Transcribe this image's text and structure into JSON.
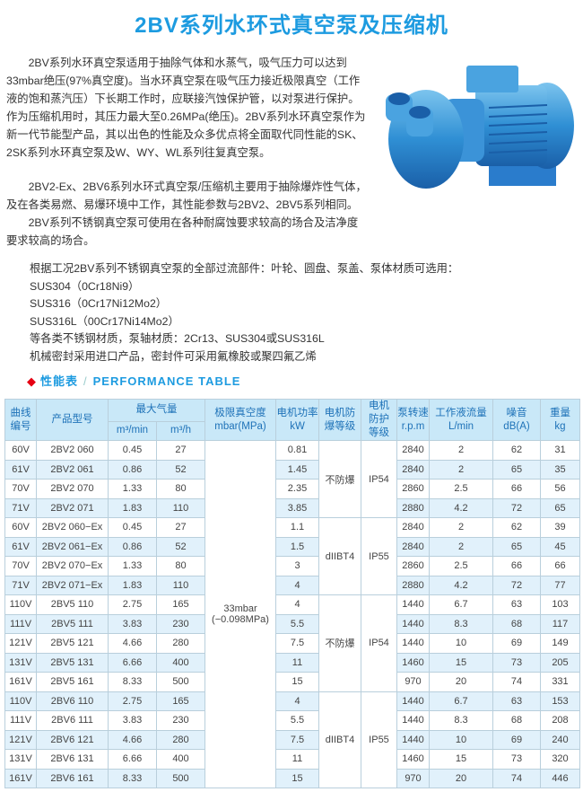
{
  "title": "2BV系列水环式真空泵及压缩机",
  "intro": {
    "paragraphs": [
      "2BV系列水环真空泵适用于抽除气体和水蒸气，吸气压力可以达到33mbar绝压(97%真空度)。当水环真空泵在吸气压力接近极限真空（工作液的饱和蒸汽压）下长期工作时，应联接汽蚀保护管，以对泵进行保护。作为压缩机用时，其压力最大至0.26MPa(绝压)。2BV系列水环真空泵作为新一代节能型产品，其以出色的性能及众多优点将全面取代同性能的SK、2SK系列水环真空泵及W、WY、WL系列往复真空泵。",
      "2BV2-Ex、2BV6系列水环式真空泵/压缩机主要用于抽除爆炸性气体，及在各类易燃、易爆环境中工作，其性能参数与2BV2、2BV5系列相同。",
      "2BV系列不锈钢真空泵可使用在各种耐腐蚀要求较高的场合及洁净度要求较高的场合。"
    ]
  },
  "materials": [
    "根据工况2BV系列不锈钢真空泵的全部过流部件：叶轮、圆盘、泵盖、泵体材质可选用：",
    "SUS304（0Cr18Ni9）",
    "SUS316（0Cr17Ni12Mo2）",
    "SUS316L（00Cr17Ni14Mo2）",
    "等各类不锈钢材质，泵轴材质：2Cr13、SUS304或SUS316L",
    "机械密封采用进口产品，密封件可采用氟橡胶或聚四氟乙烯"
  ],
  "section": {
    "icon": "diamond-icon",
    "cn": "性能表",
    "sep": "/",
    "en": "PERFORMANCE TABLE"
  },
  "colors": {
    "accent": "#1d9be0",
    "diamond": "#e60012",
    "header_bg": "#c9e8f8",
    "stripe": "#e1f1fb"
  },
  "table": {
    "headers": {
      "curve": "曲线编号",
      "model": "产品型号",
      "max_flow": "最大气量",
      "m3min": "m³/min",
      "m3h": "m³/h",
      "vacuum": "极限真空度",
      "vacuum_unit": "mbar(MPa)",
      "power": "电机功率",
      "power_unit": "kW",
      "ex": "电机防爆等级",
      "ip": "电机防护等级",
      "rpm": "泵转速",
      "rpm_unit": "r.p.m",
      "liquid": "工作液流量",
      "liquid_unit": "L/min",
      "noise": "噪音",
      "noise_unit": "dB(A)",
      "weight": "重量",
      "weight_unit": "kg"
    },
    "vacuum_value": "33mbar",
    "vacuum_value2": "(−0.098MPa)",
    "groups": [
      {
        "ex": "不防爆",
        "ip": "IP54",
        "rows": [
          [
            "60V",
            "2BV2 060",
            "0.45",
            "27",
            "0.81",
            "2840",
            "2",
            "62",
            "31"
          ],
          [
            "61V",
            "2BV2 061",
            "0.86",
            "52",
            "1.45",
            "2840",
            "2",
            "65",
            "35"
          ],
          [
            "70V",
            "2BV2 070",
            "1.33",
            "80",
            "2.35",
            "2860",
            "2.5",
            "66",
            "56"
          ],
          [
            "71V",
            "2BV2 071",
            "1.83",
            "110",
            "3.85",
            "2880",
            "4.2",
            "72",
            "65"
          ]
        ]
      },
      {
        "ex": "dIIBT4",
        "ip": "IP55",
        "rows": [
          [
            "60V",
            "2BV2 060−Ex",
            "0.45",
            "27",
            "1.1",
            "2840",
            "2",
            "62",
            "39"
          ],
          [
            "61V",
            "2BV2 061−Ex",
            "0.86",
            "52",
            "1.5",
            "2840",
            "2",
            "65",
            "45"
          ],
          [
            "70V",
            "2BV2 070−Ex",
            "1.33",
            "80",
            "3",
            "2860",
            "2.5",
            "66",
            "66"
          ],
          [
            "71V",
            "2BV2 071−Ex",
            "1.83",
            "110",
            "4",
            "2880",
            "4.2",
            "72",
            "77"
          ]
        ]
      },
      {
        "ex": "不防爆",
        "ip": "IP54",
        "rows": [
          [
            "110V",
            "2BV5 110",
            "2.75",
            "165",
            "4",
            "1440",
            "6.7",
            "63",
            "103"
          ],
          [
            "111V",
            "2BV5 111",
            "3.83",
            "230",
            "5.5",
            "1440",
            "8.3",
            "68",
            "117"
          ],
          [
            "121V",
            "2BV5 121",
            "4.66",
            "280",
            "7.5",
            "1440",
            "10",
            "69",
            "149"
          ],
          [
            "131V",
            "2BV5 131",
            "6.66",
            "400",
            "11",
            "1460",
            "15",
            "73",
            "205"
          ],
          [
            "161V",
            "2BV5 161",
            "8.33",
            "500",
            "15",
            "970",
            "20",
            "74",
            "331"
          ]
        ]
      },
      {
        "ex": "dIIBT4",
        "ip": "IP55",
        "rows": [
          [
            "110V",
            "2BV6 110",
            "2.75",
            "165",
            "4",
            "1440",
            "6.7",
            "63",
            "153"
          ],
          [
            "111V",
            "2BV6 111",
            "3.83",
            "230",
            "5.5",
            "1440",
            "8.3",
            "68",
            "208"
          ],
          [
            "121V",
            "2BV6 121",
            "4.66",
            "280",
            "7.5",
            "1440",
            "10",
            "69",
            "240"
          ],
          [
            "131V",
            "2BV6 131",
            "6.66",
            "400",
            "11",
            "1460",
            "15",
            "73",
            "320"
          ],
          [
            "161V",
            "2BV6 161",
            "8.33",
            "500",
            "15",
            "970",
            "20",
            "74",
            "446"
          ]
        ]
      }
    ]
  }
}
